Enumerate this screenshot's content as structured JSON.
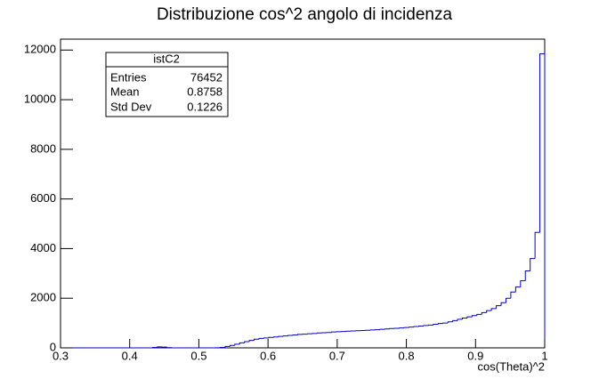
{
  "chart_data": {
    "type": "histogram",
    "title": "Distribuzione cos^2 angolo di incidenza",
    "x_label": "cos(Theta)^2",
    "color": "#0000cc",
    "bins": [
      0.3,
      0.307,
      0.314,
      0.321,
      0.328,
      0.335,
      0.342,
      0.349,
      0.356,
      0.363,
      0.37,
      0.377,
      0.384,
      0.391,
      0.398,
      0.405,
      0.412,
      0.419,
      0.426,
      0.433,
      0.44,
      0.447,
      0.454,
      0.461,
      0.468,
      0.475,
      0.482,
      0.489,
      0.496,
      0.503,
      0.51,
      0.517,
      0.524,
      0.531,
      0.538,
      0.545,
      0.552,
      0.559,
      0.566,
      0.573,
      0.58,
      0.587,
      0.594,
      0.601,
      0.608,
      0.615,
      0.622,
      0.629,
      0.636,
      0.643,
      0.65,
      0.657,
      0.664,
      0.671,
      0.678,
      0.685,
      0.692,
      0.699,
      0.706,
      0.713,
      0.72,
      0.727,
      0.734,
      0.741,
      0.748,
      0.755,
      0.762,
      0.769,
      0.776,
      0.783,
      0.79,
      0.797,
      0.804,
      0.811,
      0.818,
      0.825,
      0.832,
      0.839,
      0.846,
      0.853,
      0.86,
      0.867,
      0.874,
      0.881,
      0.888,
      0.895,
      0.902,
      0.909,
      0.916,
      0.923,
      0.93,
      0.937,
      0.944,
      0.951,
      0.958,
      0.965,
      0.972,
      0.979,
      0.986,
      0.993,
      1.0
    ],
    "values": [
      0,
      0,
      0,
      0,
      0,
      0,
      0,
      0,
      0,
      0,
      0,
      0,
      0,
      0,
      0,
      0,
      0,
      0,
      0,
      20,
      40,
      30,
      10,
      0,
      0,
      0,
      0,
      0,
      0,
      0,
      0,
      0,
      5,
      20,
      60,
      100,
      150,
      200,
      250,
      300,
      350,
      380,
      400,
      420,
      440,
      460,
      480,
      500,
      520,
      540,
      550,
      570,
      580,
      600,
      610,
      620,
      640,
      650,
      660,
      670,
      680,
      690,
      700,
      710,
      720,
      730,
      750,
      760,
      780,
      790,
      800,
      820,
      840,
      860,
      880,
      900,
      920,
      950,
      980,
      1000,
      1050,
      1100,
      1150,
      1200,
      1250,
      1300,
      1350,
      1420,
      1500,
      1580,
      1700,
      1820,
      2000,
      2250,
      2450,
      2700,
      3100,
      3600,
      4650,
      11850
    ],
    "xlim": [
      0.3,
      1
    ],
    "xticks": [
      0.3,
      0.4,
      0.5,
      0.6,
      0.7,
      0.8,
      0.9,
      1
    ],
    "ylim": [
      0,
      12440
    ],
    "yticks": [
      0,
      2000,
      4000,
      6000,
      8000,
      10000,
      12000
    ],
    "stats": {
      "name": "istC2",
      "rows": [
        [
          "Entries",
          76452
        ],
        [
          "Mean",
          0.8758
        ],
        [
          "Std Dev",
          0.1226
        ]
      ]
    }
  }
}
